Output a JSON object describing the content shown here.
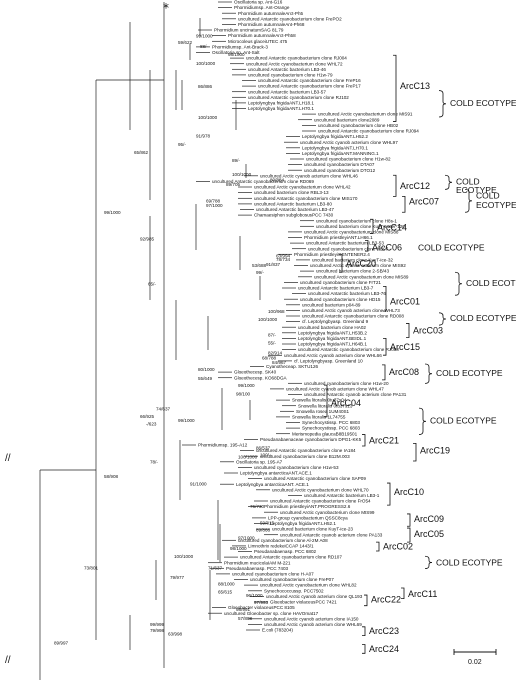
{
  "root_marker": "*",
  "break_marks": "//",
  "scale": {
    "label": "0.02"
  },
  "taxa": [
    {
      "name": "Oscillatoria sp. Ant-G16"
    },
    {
      "name": "Phormidiumsp. Ant-Orange"
    },
    {
      "name": "Phormidium autumnaleArct-Ph5"
    },
    {
      "name": "uncultured Antarctic cyanobacterium clone FrePO2"
    },
    {
      "name": "Phormidium autumnaleAnt-Ph68"
    },
    {
      "name": "Phormidium uncinatumSAG 81.79"
    },
    {
      "name": "Phormidium autumnaleArct-Ph58"
    },
    {
      "name": "Microcoleus glaceiUTEC 475"
    },
    {
      "name": "Phormidiumsp. Ant-Brack-3"
    },
    {
      "name": "Oscillatoria sp. Ant-Salt"
    },
    {
      "name": "uncultured Antarctic cyanobacterium clone RJ004"
    },
    {
      "name": "uncultured Arctic cyanobacterium clone WHL72"
    },
    {
      "name": "uncultured Antarctic bacterium LB3-46"
    },
    {
      "name": "uncultured cyanobacterium clone H1w-79"
    },
    {
      "name": "uncultured Antarctic cyanobacterium clone FreP16"
    },
    {
      "name": "uncultured Antarctic cyanobacterium clone FreP17"
    },
    {
      "name": "uncultured Antarctic bacterium LB3-57"
    },
    {
      "name": "uncultured Antarctic cyanobacterium clone RJ102"
    },
    {
      "name": "Leptolyngbya frigidaANT.LH18.1"
    },
    {
      "name": "Leptolyngbya frigidaANT.LH70.1"
    },
    {
      "name": "uncultured Arctic cyanobacterium clone MIS91"
    },
    {
      "name": "uncultured bacterium clone2089"
    },
    {
      "name": "uncultured cyanobacterium clone HB02"
    },
    {
      "name": "uncultured Antarctic cyanobacterium clone RJ094"
    },
    {
      "name": "Leptolyngbya frigidaANT.LH52.2"
    },
    {
      "name": "uncultured Arctic cyanob acterium clone WHL97"
    },
    {
      "name": "Leptolyngbya frigidaANT.LH70.1"
    },
    {
      "name": "Leptolyngbya frigidaANT.MANNING.1"
    },
    {
      "name": "uncultured cyanobacterium clone H1w-82"
    },
    {
      "name": "uncultured cyanobacterium DTA07"
    },
    {
      "name": "uncultured cyanobacterium DTO12"
    },
    {
      "name": "uncultured Arctic cyanob acterium clone WHL46"
    },
    {
      "name": "uncultured Antarctic cyanobacterium clone RD069"
    },
    {
      "name": "uncultured Arctic cyanobacterium clone WHL42"
    },
    {
      "name": "uncultured bacterium clone RBL3-13"
    },
    {
      "name": "uncultured Antarctic cyanobacterium clone MIS170"
    },
    {
      "name": "uncultured Antarctic bacterium LB3-80"
    },
    {
      "name": "uncultured Antarctic bacterium LB3-47"
    },
    {
      "name": "Chamaesiphon subglobosusPCC 7430"
    },
    {
      "name": "uncultured cyanobacterium clone H8s-1"
    },
    {
      "name": "uncultured bacterium clone KuyT-water-120"
    },
    {
      "name": "uncultured Arctic cyanobacterium clone MIS88"
    },
    {
      "name": "Phormidium priestleyiANT.LH66.1"
    },
    {
      "name": "uncultured Antarctic bacterium LB3-53"
    },
    {
      "name": "uncultured cyanobacterium clone HB07"
    },
    {
      "name": "Phormidium priestleyiGENTENER2.4"
    },
    {
      "name": "uncultured bacterium clone KuyT-ice-32"
    },
    {
      "name": "uncultured Arctic cyanob acterium clone MIS92"
    },
    {
      "name": "uncultured bacterium clone 2-SB/43"
    },
    {
      "name": "uncultured Arctic cyanobacterium clone MIS89"
    },
    {
      "name": "uncultured cyanobacterium clone FrT21"
    },
    {
      "name": "uncultured Antarctic bacterium LB3-7"
    },
    {
      "name": "uncultured Antarctic bacterium LB3-76"
    },
    {
      "name": "uncultured cyanobacterium clone HD15"
    },
    {
      "name": "uncultured bacterium p04-89"
    },
    {
      "name": "uncultured Arctic cyanob acterium clone WHL73"
    },
    {
      "name": "uncultured Antarctic cyanobacterium clone RD008"
    },
    {
      "name": "cf. Leptolyngbyasp. Greenland 9"
    },
    {
      "name": "uncultured bacterium clone HA02"
    },
    {
      "name": "Leptolyngbya frigidaANT.LH53B.2"
    },
    {
      "name": "Leptolyngbya frigidaANT.BEIDL.1"
    },
    {
      "name": "Leptolyngbya frigidaANT.LH64B.1"
    },
    {
      "name": "uncultured Antarctic cyanobacterium clone RJ088"
    },
    {
      "name": "uncultured Arctic cyanob acterium clone WHL66"
    },
    {
      "name": "cf. Leptolyngbyasp. Greenland 10"
    },
    {
      "name": "Cyanotheceap. SKTU126"
    },
    {
      "name": "Gloeothecesp. SK40"
    },
    {
      "name": "Gloeothecesp. KO68DGA"
    },
    {
      "name": "uncultured cyanobacterium clone H1w-20"
    },
    {
      "name": "uncultured Arctic cyanob acterium clone WHL47"
    },
    {
      "name": "uncultured Antarctic cyanob acterium clone PA131"
    },
    {
      "name": "Snowella litoralis 0tu37s04"
    },
    {
      "name": "Snowella litoralis 0tu37s13"
    },
    {
      "name": "Snowella rosea 1UM40S1"
    },
    {
      "name": "Snowella litoralis 1L74755"
    },
    {
      "name": "Synechocystissp. PCC 6803"
    },
    {
      "name": "Synechocystissp. PCC 6803"
    },
    {
      "name": "Merismopedia glaucaB8B19501"
    },
    {
      "name": "Pseudanabaenaceae cyanobacterium DPG1-KK5"
    },
    {
      "name": "Phormidiumsp. 195-A12"
    },
    {
      "name": "uncultured Antarctic cyanobacterium clone IA184"
    },
    {
      "name": "uncultured cyanobacterium clone B12M.003"
    },
    {
      "name": "Oscillatoria sp. 195-A7"
    },
    {
      "name": "uncultured cyanobacterium clone H1w-53"
    },
    {
      "name": "Leptolyngbya antarcticaANT.ACE.1"
    },
    {
      "name": "uncultured Antarctic cyanobacterium clone SAP09"
    },
    {
      "name": "Leptolyngbya antarcticaANT. ACE.1"
    },
    {
      "name": "uncultured Arctic cyanobacterium clone WHL70"
    },
    {
      "name": "uncultured Antarctic bacterium LB3-1"
    },
    {
      "name": "uncultured Antarctic cyanobacterium clone FrO54"
    },
    {
      "name": "Phormidium priestleyiANT.PROGRESS2.6"
    },
    {
      "name": "uncultured Arctic cyanobacterium clone MIS99"
    },
    {
      "name": "LPP-group cyanobacterium QSSC8cya"
    },
    {
      "name": "Leptolyngbya frigidaANT.LH52.1"
    },
    {
      "name": "uncultured bacterium clone KuyT-ice-23"
    },
    {
      "name": "uncultured Antarctic cyanob acterium clone PA133"
    },
    {
      "name": "uncultured cyanobacterium clone Al-2M A08"
    },
    {
      "name": "Limnothrix redekeiCCAP 1443/1"
    },
    {
      "name": "Pseudanabaenasp. PCC 6802"
    },
    {
      "name": "uncultured Antarctic cyanobacterium clone RD107"
    },
    {
      "name": "Phormidium mucicolaIAM M-221"
    },
    {
      "name": "Pseudanabaenasp. PCC 7403"
    },
    {
      "name": "uncultured cyanobacterium clone H-A07"
    },
    {
      "name": "uncultured cyanobacterium clone FreP07"
    },
    {
      "name": "uncultured Arctic cyanobacterium clone WHL82"
    },
    {
      "name": "Synechococcussp. PCC7502"
    },
    {
      "name": "uncultured Arctic cyanob acterium clone QL193"
    },
    {
      "name": "Gloeobacter violaceusPCC 7421"
    },
    {
      "name": "Gloeobacter violaceusPCC 8105"
    },
    {
      "name": "uncultured Gloeobacter sp. clone HAVOmat17"
    },
    {
      "name": "uncultured Arctic cyanob acterium clone IA150"
    },
    {
      "name": "uncultured Arctic cyanob acterium clone WHL69"
    },
    {
      "name": "E.coli (783204)"
    }
  ],
  "bootstrap": [
    {
      "text": "99/1000"
    },
    {
      "text": "59/622"
    },
    {
      "text": "88/-"
    },
    {
      "text": "98/1000"
    },
    {
      "text": "100/1000"
    },
    {
      "text": "86/886"
    },
    {
      "text": "100/1000"
    },
    {
      "text": "95/-"
    },
    {
      "text": "91/978"
    },
    {
      "text": "89/-"
    },
    {
      "text": "100/1000"
    },
    {
      "text": "80/884"
    },
    {
      "text": "89/705"
    },
    {
      "text": "65/862"
    },
    {
      "text": "69/788"
    },
    {
      "text": "97/1000"
    },
    {
      "text": "99/1000"
    },
    {
      "text": "92/985"
    },
    {
      "text": "63/994"
    },
    {
      "text": "78/734"
    },
    {
      "text": "53/688"
    },
    {
      "text": "99/-"
    },
    {
      "text": "91/837"
    },
    {
      "text": "65/-"
    },
    {
      "text": "100/968"
    },
    {
      "text": "100/1000"
    },
    {
      "text": "87/-"
    },
    {
      "text": "55/-"
    },
    {
      "text": "82/914"
    },
    {
      "text": "68/788"
    },
    {
      "text": "84/967"
    },
    {
      "text": "80/1000"
    },
    {
      "text": "55/649"
    },
    {
      "text": "99/1000"
    },
    {
      "text": "98/100"
    },
    {
      "text": "74/637"
    },
    {
      "text": "66/925"
    },
    {
      "text": "99/1000"
    },
    {
      "text": "-/623"
    },
    {
      "text": "86/537"
    },
    {
      "text": "100/-"
    },
    {
      "text": "100/1000"
    },
    {
      "text": "78/-"
    },
    {
      "text": "58/908"
    },
    {
      "text": "91/1000"
    },
    {
      "text": "76/730"
    },
    {
      "text": "59/815"
    },
    {
      "text": "89/866"
    },
    {
      "text": "97/1000"
    },
    {
      "text": "98/1000"
    },
    {
      "text": "100/1000"
    },
    {
      "text": "73/801"
    },
    {
      "text": "71/637"
    },
    {
      "text": "79/977"
    },
    {
      "text": "88/1000"
    },
    {
      "text": "65/615"
    },
    {
      "text": "96/1000"
    },
    {
      "text": "97/993"
    },
    {
      "text": "98/991"
    },
    {
      "text": "57/808"
    },
    {
      "text": "99/999"
    },
    {
      "text": "79/998"
    },
    {
      "text": "63/998"
    },
    {
      "text": "89/997"
    }
  ],
  "clades": [
    {
      "label": "ArcC13"
    },
    {
      "label": "ArcC12"
    },
    {
      "label": "ArcC07"
    },
    {
      "label": "ArcC14"
    },
    {
      "label": "ArcC06"
    },
    {
      "label": "ArcC20"
    },
    {
      "label": "ArcC01"
    },
    {
      "label": "ArcC03"
    },
    {
      "label": "ArcC15"
    },
    {
      "label": "ArcC08"
    },
    {
      "label": "ArcC04"
    },
    {
      "label": "ArcC21"
    },
    {
      "label": "ArcC19"
    },
    {
      "label": "ArcC10"
    },
    {
      "label": "ArcC09"
    },
    {
      "label": "ArcC05"
    },
    {
      "label": "ArcC02"
    },
    {
      "label": "ArcC11"
    },
    {
      "label": "ArcC22"
    },
    {
      "label": "ArcC23"
    },
    {
      "label": "ArcC24"
    }
  ],
  "ecotypes": [
    {
      "label": "COLD ECOTYPE"
    },
    {
      "label": "COLD"
    },
    {
      "label": "ECOTYPE"
    },
    {
      "label": "COLD"
    },
    {
      "label": "ECOTYPE"
    },
    {
      "label": "COLD ECOTYPE"
    },
    {
      "label": "COLD ECOTYPE"
    },
    {
      "label": "COLD ECOTYPE"
    },
    {
      "label": "COLD ECOTYPE"
    },
    {
      "label": "COLD ECOTYPE"
    },
    {
      "label": "COLD ECOTYPE"
    }
  ]
}
